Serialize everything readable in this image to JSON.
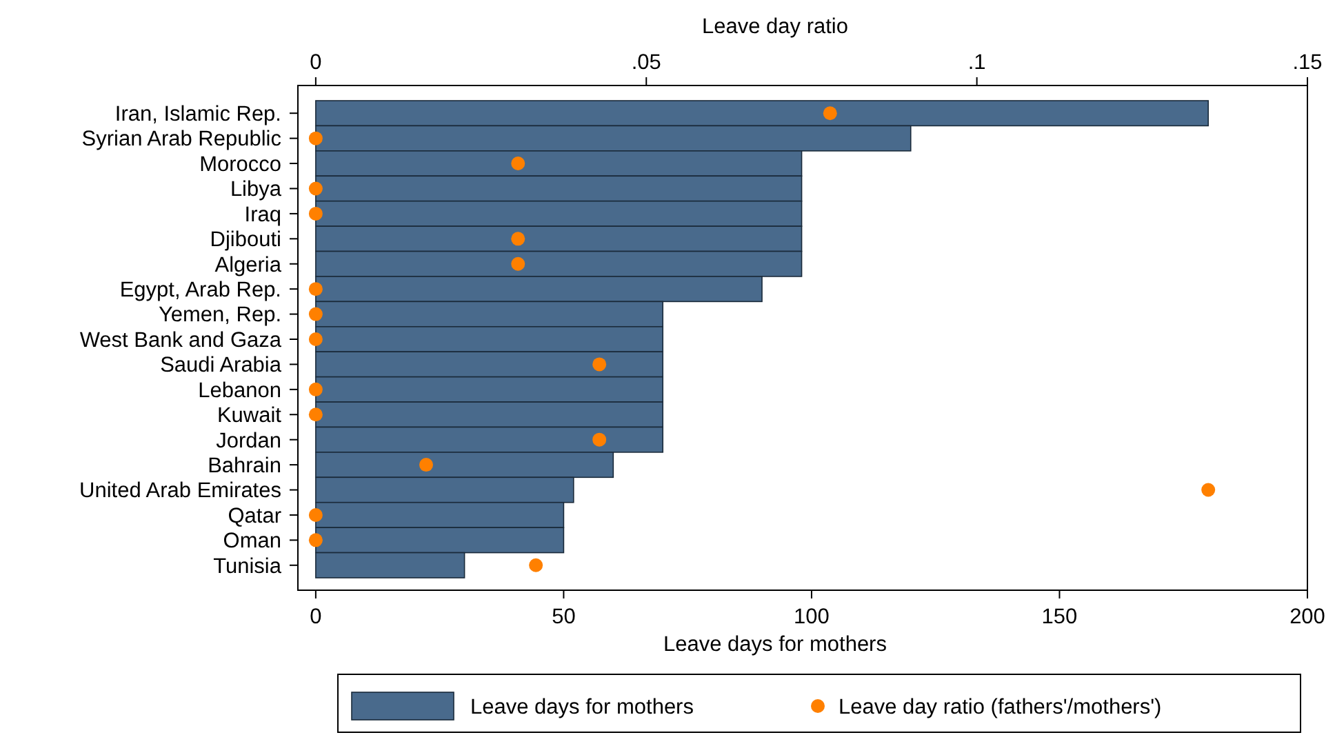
{
  "chart_data": {
    "type": "bar",
    "orientation": "horizontal",
    "xlabel": "Leave days for mothers",
    "x2label": "Leave day ratio",
    "categories": [
      "Iran, Islamic Rep.",
      "Syrian Arab Republic",
      "Morocco",
      "Libya",
      "Iraq",
      "Djibouti",
      "Algeria",
      "Egypt, Arab Rep.",
      "Yemen, Rep.",
      "West Bank and Gaza",
      "Saudi Arabia",
      "Lebanon",
      "Kuwait",
      "Jordan",
      "Bahrain",
      "United Arab Emirates",
      "Qatar",
      "Oman",
      "Tunisia"
    ],
    "series": [
      {
        "name": "Leave days for mothers",
        "color": "#496a8c",
        "values": [
          180,
          120,
          98,
          98,
          98,
          98,
          98,
          90,
          70,
          70,
          70,
          70,
          70,
          70,
          60,
          52,
          50,
          50,
          30
        ]
      },
      {
        "name": "Leave day ratio (fathers'/mothers')",
        "type": "scatter",
        "axis": "x2",
        "color": "#ff8000",
        "values": [
          0.0778,
          0,
          0.0306,
          0,
          0,
          0.0306,
          0.0306,
          0,
          0,
          0,
          0.0429,
          0,
          0,
          0.0429,
          0.0167,
          0.135,
          0,
          0,
          0.0333
        ]
      }
    ],
    "xlim": [
      -3.6,
      200
    ],
    "xticks": [
      0,
      50,
      100,
      150,
      200
    ],
    "x2lim": [
      -0.0027,
      0.15
    ],
    "x2ticks": [
      0,
      {
        "value": 0.05,
        "label": ".05"
      },
      {
        "value": 0.1,
        "label": ".1"
      },
      {
        "value": 0.15,
        "label": ".15"
      }
    ],
    "marker": "circle",
    "grid": false,
    "legend": "bottom"
  }
}
